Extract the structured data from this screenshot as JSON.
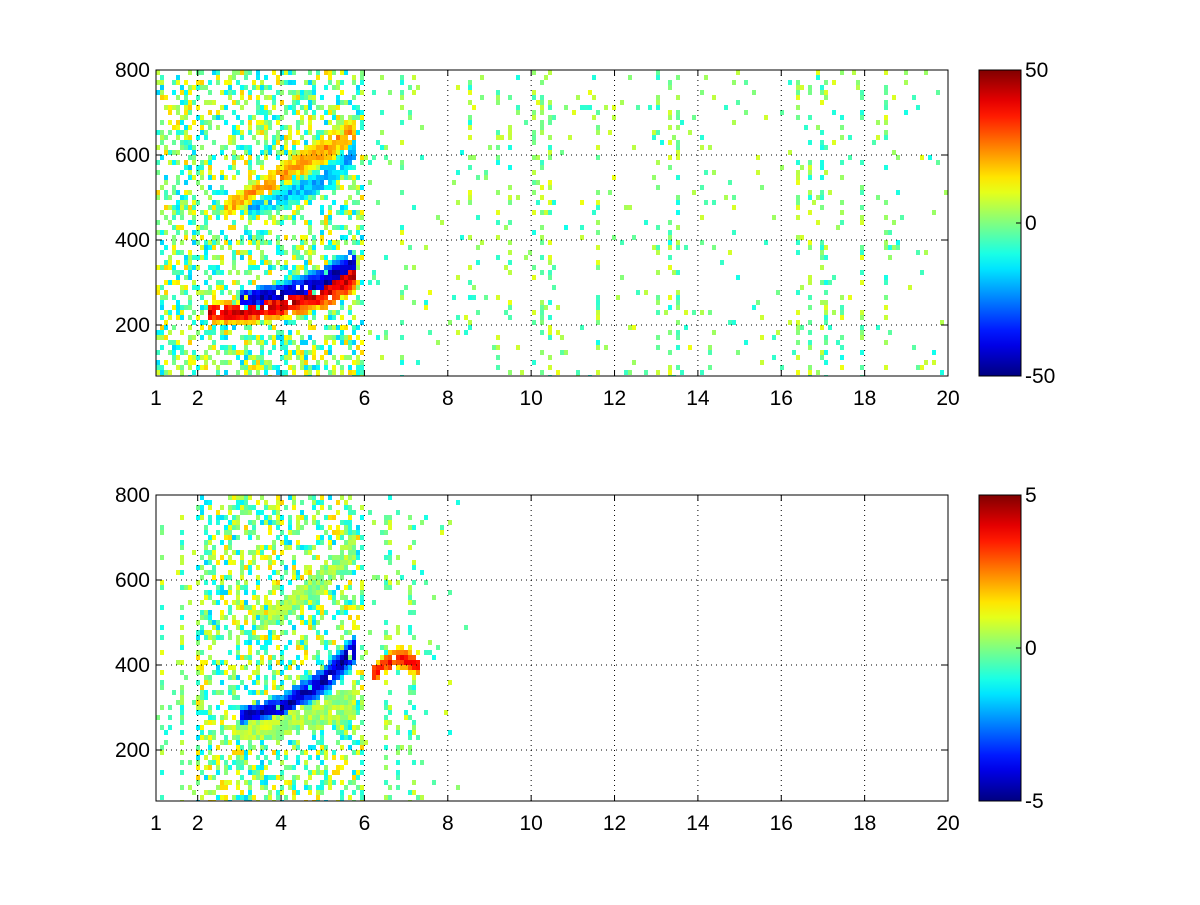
{
  "chart_data": [
    {
      "type": "heatmap",
      "title": "",
      "xlabel": "",
      "ylabel": "",
      "xlim": [
        1,
        20
      ],
      "ylim": [
        80,
        800
      ],
      "x_ticks": [
        1,
        2,
        4,
        6,
        8,
        10,
        12,
        14,
        16,
        18,
        20
      ],
      "x_tick_labels": [
        "1",
        "2",
        "4",
        "6",
        "8",
        "10",
        "12",
        "14",
        "16",
        "18",
        "20"
      ],
      "y_ticks": [
        200,
        400,
        600,
        800
      ],
      "y_tick_labels": [
        "200",
        "400",
        "600",
        "800"
      ],
      "grid": true,
      "colormap": "jet",
      "colorbar": {
        "range": [
          -50,
          50
        ],
        "tick_labels": [
          "50",
          "0",
          "-50"
        ],
        "ticks": [
          50,
          0,
          -50
        ]
      },
      "ridges": [
        {
          "x": [
            2.2,
            3,
            4,
            5,
            5.8
          ],
          "y": [
            230,
            228,
            245,
            275,
            320
          ],
          "value": 42
        },
        {
          "x": [
            3,
            4,
            5,
            5.8
          ],
          "y": [
            260,
            270,
            300,
            345
          ],
          "value": -45
        },
        {
          "x": [
            2.6,
            3.5,
            4.5,
            5.8
          ],
          "y": [
            470,
            520,
            580,
            660
          ],
          "value": 22
        },
        {
          "x": [
            3.2,
            4,
            5,
            5.8
          ],
          "y": [
            470,
            500,
            540,
            610
          ],
          "value": -20
        }
      ],
      "noise_extent_x": [
        1,
        20
      ],
      "dense_extent_x": [
        1,
        6
      ]
    },
    {
      "type": "heatmap",
      "title": "",
      "xlabel": "",
      "ylabel": "",
      "xlim": [
        1,
        20
      ],
      "ylim": [
        80,
        800
      ],
      "x_ticks": [
        1,
        2,
        4,
        6,
        8,
        10,
        12,
        14,
        16,
        18,
        20
      ],
      "x_tick_labels": [
        "1",
        "2",
        "4",
        "6",
        "8",
        "10",
        "12",
        "14",
        "16",
        "18",
        "20"
      ],
      "y_ticks": [
        200,
        400,
        600,
        800
      ],
      "y_tick_labels": [
        "200",
        "400",
        "600",
        "800"
      ],
      "grid": true,
      "colormap": "jet",
      "colorbar": {
        "range": [
          -5,
          5
        ],
        "tick_labels": [
          "5",
          "0",
          "-5"
        ],
        "ticks": [
          5,
          0,
          -5
        ]
      },
      "ridges": [
        {
          "x": [
            2.8,
            3.5,
            4.5,
            5.8
          ],
          "y": [
            240,
            250,
            275,
            310
          ],
          "value": 0.5
        },
        {
          "x": [
            3,
            4,
            5,
            5.8
          ],
          "y": [
            280,
            300,
            360,
            440
          ],
          "value": -4.5
        },
        {
          "x": [
            3.5,
            4.5,
            5.8
          ],
          "y": [
            500,
            560,
            680
          ],
          "value": 0.3
        },
        {
          "x": [
            6.2,
            6.8,
            7.3
          ],
          "y": [
            380,
            420,
            400
          ],
          "value": 3.5
        }
      ],
      "noise_extent_x": [
        1,
        8.5
      ],
      "dense_extent_x": [
        2,
        6
      ]
    }
  ]
}
